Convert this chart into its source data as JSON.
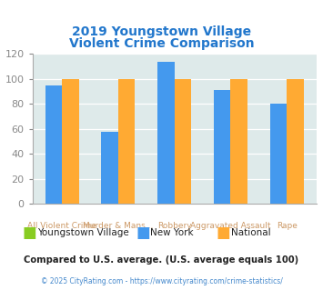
{
  "title_line1": "2019 Youngstown Village",
  "title_line2": "Violent Crime Comparison",
  "title_color": "#2277cc",
  "categories": [
    "All Violent Crime",
    "Murder & Mans...",
    "Robbery",
    "Aggravated Assault",
    "Rape"
  ],
  "x_labels_top": [
    "",
    "Murder & Mans...",
    "",
    "Aggravated Assault",
    ""
  ],
  "x_labels_bot": [
    "All Violent Crime",
    "",
    "Robbery",
    "",
    "Rape"
  ],
  "newyork_values": [
    95,
    58,
    114,
    91,
    80
  ],
  "national_values": [
    100,
    100,
    100,
    100,
    100
  ],
  "youngstown_color": "#88cc22",
  "newyork_color": "#4499ee",
  "national_color": "#ffaa33",
  "bg_color": "#deeaea",
  "ylim": [
    0,
    120
  ],
  "yticks": [
    0,
    20,
    40,
    60,
    80,
    100,
    120
  ],
  "legend_labels": [
    "Youngstown Village",
    "New York",
    "National"
  ],
  "footnote1": "Compared to U.S. average. (U.S. average equals 100)",
  "footnote2": "© 2025 CityRating.com - https://www.cityrating.com/crime-statistics/",
  "footnote1_color": "#222222",
  "footnote2_color": "#4488cc",
  "axis_label_color": "#cc9966",
  "tick_color": "#888888"
}
